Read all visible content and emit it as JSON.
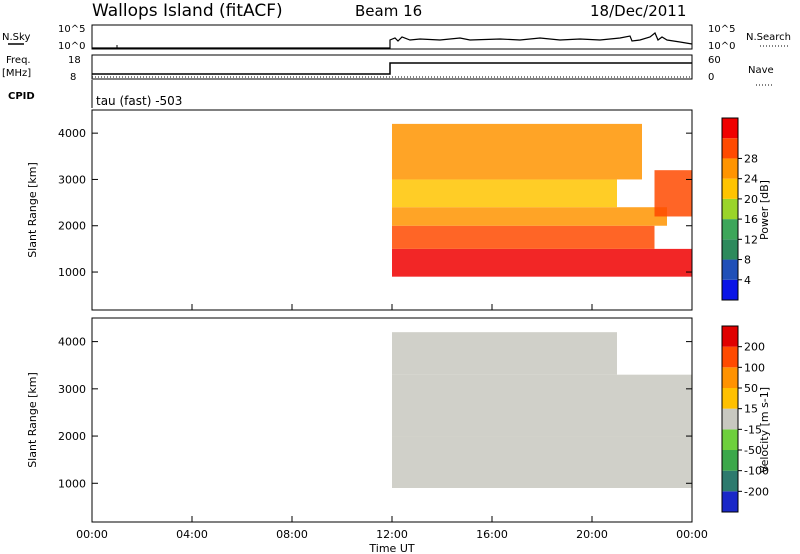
{
  "header": {
    "site": "Wallops Island (fitACF)",
    "beam": "Beam 16",
    "date": "18/Dec/2011"
  },
  "params": {
    "nsky_label": "N.Sky",
    "nsearch_label": "N.Search",
    "freq_label": "Freq.",
    "freq_unit": "[MHz]",
    "nave_label": "Nave",
    "cpid_label": "CPID",
    "cpid_value": "tau (fast) -503",
    "nsky_ticks": [
      "10^5",
      "10^0"
    ],
    "nsearch_ticks": [
      "10^5",
      "10^0"
    ],
    "freq_ticks": [
      "18",
      "8"
    ],
    "nave_ticks": [
      "60",
      "0"
    ]
  },
  "colors": {
    "power": [
      "#0a14e6",
      "#2050b8",
      "#2d8a5c",
      "#3da65a",
      "#9ad42a",
      "#ffc400",
      "#ff9400",
      "#ff4a00",
      "#f00000"
    ],
    "velocity": [
      "#1a28c8",
      "#2d7a6e",
      "#3ba84a",
      "#6ed03c",
      "#c8c8c0",
      "#ffc000",
      "#ff9200",
      "#ff4a00",
      "#e00000"
    ]
  },
  "chart_data": [
    {
      "type": "heatmap",
      "name": "Power",
      "ylabel": "Slant Range [km]",
      "ylim": [
        180,
        4500
      ],
      "yticks": [
        "1000",
        "2000",
        "3000",
        "4000"
      ],
      "xlim": [
        "00:00",
        "24:00"
      ],
      "colorbar_label": "Power [dB]",
      "colorbar_ticks": [
        "4",
        "8",
        "12",
        "16",
        "20",
        "24",
        "28"
      ],
      "colorbar_range": [
        0,
        30
      ],
      "bands": [
        {
          "t0": 12.0,
          "t1": 24.0,
          "r0": 900,
          "r1": 1500,
          "value": 28
        },
        {
          "t0": 12.0,
          "t1": 22.5,
          "r0": 1500,
          "r1": 2000,
          "value": 25
        },
        {
          "t0": 12.0,
          "t1": 23.0,
          "r0": 2000,
          "r1": 2400,
          "value": 22
        },
        {
          "t0": 12.0,
          "t1": 21.0,
          "r0": 2400,
          "r1": 3000,
          "value": 18
        },
        {
          "t0": 12.0,
          "t1": 22.0,
          "r0": 3000,
          "r1": 4200,
          "value": 20
        },
        {
          "t0": 22.5,
          "t1": 24.0,
          "r0": 2200,
          "r1": 3200,
          "value": 26
        }
      ]
    },
    {
      "type": "heatmap",
      "name": "Velocity",
      "ylabel": "Slant Range [km]",
      "ylim": [
        180,
        4500
      ],
      "yticks": [
        "1000",
        "2000",
        "3000",
        "4000"
      ],
      "xlim": [
        "00:00",
        "24:00"
      ],
      "xticks": [
        "00:00",
        "04:00",
        "08:00",
        "12:00",
        "16:00",
        "20:00",
        "00:00"
      ],
      "xlabel": "Time UT",
      "colorbar_label": "Velocity [m s-1]",
      "colorbar_ticks": [
        "200",
        "100",
        "50",
        "15",
        "-15",
        "-50",
        "-100",
        "-200"
      ],
      "colorbar_range": [
        -250,
        250
      ],
      "bands": [
        {
          "t0": 12.0,
          "t1": 24.0,
          "r0": 900,
          "r1": 2000,
          "value": 0
        },
        {
          "t0": 12.0,
          "t1": 24.0,
          "r0": 2000,
          "r1": 3300,
          "value": 0
        },
        {
          "t0": 12.0,
          "t1": 21.0,
          "r0": 3300,
          "r1": 4200,
          "value": 0
        }
      ]
    }
  ]
}
